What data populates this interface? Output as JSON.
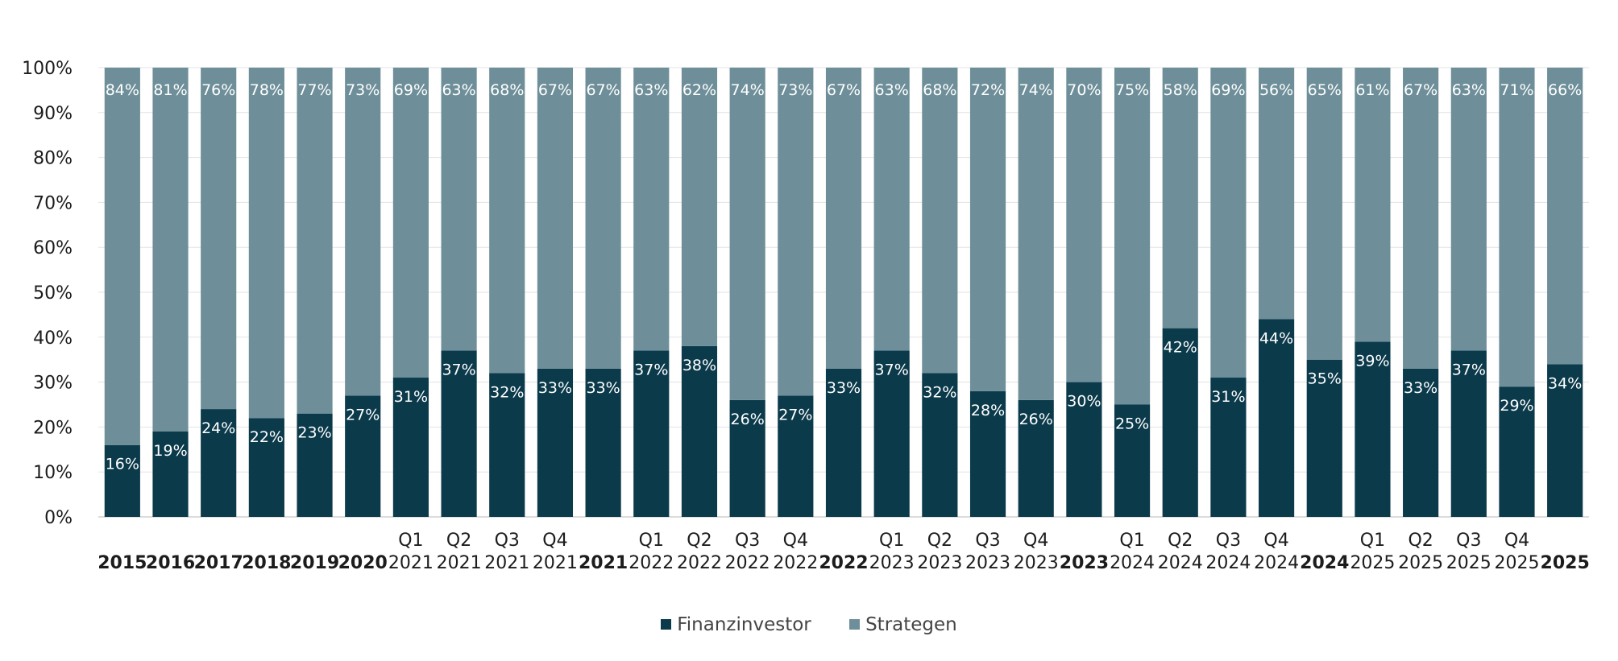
{
  "chart_data": {
    "type": "bar",
    "stacked": true,
    "percent": true,
    "title": "",
    "xlabel": "",
    "ylabel": "",
    "ylim": [
      0,
      100
    ],
    "yticks": [
      "0%",
      "10%",
      "20%",
      "30%",
      "40%",
      "50%",
      "60%",
      "70%",
      "80%",
      "90%",
      "100%"
    ],
    "grid": true,
    "legend_position": "bottom",
    "categories": [
      {
        "top": "",
        "bottom": "2015",
        "bold": true
      },
      {
        "top": "",
        "bottom": "2016",
        "bold": true
      },
      {
        "top": "",
        "bottom": "2017",
        "bold": true
      },
      {
        "top": "",
        "bottom": "2018",
        "bold": true
      },
      {
        "top": "",
        "bottom": "2019",
        "bold": true
      },
      {
        "top": "",
        "bottom": "2020",
        "bold": true
      },
      {
        "top": "Q1",
        "bottom": "2021",
        "bold": false
      },
      {
        "top": "Q2",
        "bottom": "2021",
        "bold": false
      },
      {
        "top": "Q3",
        "bottom": "2021",
        "bold": false
      },
      {
        "top": "Q4",
        "bottom": "2021",
        "bold": false
      },
      {
        "top": "",
        "bottom": "2021",
        "bold": true
      },
      {
        "top": "Q1",
        "bottom": "2022",
        "bold": false
      },
      {
        "top": "Q2",
        "bottom": "2022",
        "bold": false
      },
      {
        "top": "Q3",
        "bottom": "2022",
        "bold": false
      },
      {
        "top": "Q4",
        "bottom": "2022",
        "bold": false
      },
      {
        "top": "",
        "bottom": "2022",
        "bold": true
      },
      {
        "top": "Q1",
        "bottom": "2023",
        "bold": false
      },
      {
        "top": "Q2",
        "bottom": "2023",
        "bold": false
      },
      {
        "top": "Q3",
        "bottom": "2023",
        "bold": false
      },
      {
        "top": "Q4",
        "bottom": "2023",
        "bold": false
      },
      {
        "top": "",
        "bottom": "2023",
        "bold": true
      },
      {
        "top": "Q1",
        "bottom": "2024",
        "bold": false
      },
      {
        "top": "Q2",
        "bottom": "2024",
        "bold": false
      },
      {
        "top": "Q3",
        "bottom": "2024",
        "bold": false
      },
      {
        "top": "Q4",
        "bottom": "2024",
        "bold": false
      },
      {
        "top": "",
        "bottom": "2024",
        "bold": true
      },
      {
        "top": "Q1",
        "bottom": "2025",
        "bold": false
      },
      {
        "top": "Q2",
        "bottom": "2025",
        "bold": false
      },
      {
        "top": "Q3",
        "bottom": "2025",
        "bold": false
      },
      {
        "top": "Q4",
        "bottom": "2025",
        "bold": false
      },
      {
        "top": "",
        "bottom": "2025",
        "bold": true
      }
    ],
    "series": [
      {
        "name": "Finanzinvestor",
        "color": "#0b3a4b",
        "values": [
          16,
          19,
          24,
          22,
          23,
          27,
          31,
          37,
          32,
          33,
          33,
          37,
          38,
          26,
          27,
          33,
          37,
          32,
          28,
          26,
          30,
          25,
          42,
          31,
          44,
          35,
          39,
          33,
          37,
          29,
          34
        ],
        "labels": [
          "16%",
          "19%",
          "24%",
          "22%",
          "23%",
          "27%",
          "31%",
          "37%",
          "32%",
          "33%",
          "33%",
          "37%",
          "38%",
          "26%",
          "27%",
          "33%",
          "37%",
          "32%",
          "28%",
          "26%",
          "30%",
          "25%",
          "42%",
          "31%",
          "44%",
          "35%",
          "39%",
          "33%",
          "37%",
          "29%",
          "34%"
        ]
      },
      {
        "name": "Strategen",
        "color": "#6e8f99",
        "values": [
          84,
          81,
          76,
          78,
          77,
          73,
          69,
          63,
          68,
          67,
          67,
          63,
          62,
          74,
          73,
          67,
          63,
          68,
          72,
          74,
          70,
          75,
          58,
          69,
          56,
          65,
          61,
          67,
          63,
          71,
          66
        ],
        "labels": [
          "84%",
          "81%",
          "76%",
          "78%",
          "77%",
          "73%",
          "69%",
          "63%",
          "68%",
          "67%",
          "67%",
          "63%",
          "62%",
          "74%",
          "73%",
          "67%",
          "63%",
          "68%",
          "72%",
          "74%",
          "70%",
          "75%",
          "58%",
          "69%",
          "56%",
          "65%",
          "61%",
          "67%",
          "63%",
          "71%",
          "66%"
        ]
      }
    ]
  },
  "legend": {
    "items": [
      {
        "label": "Finanzinvestor",
        "color": "#0b3a4b"
      },
      {
        "label": "Strategen",
        "color": "#6e8f99"
      }
    ]
  }
}
